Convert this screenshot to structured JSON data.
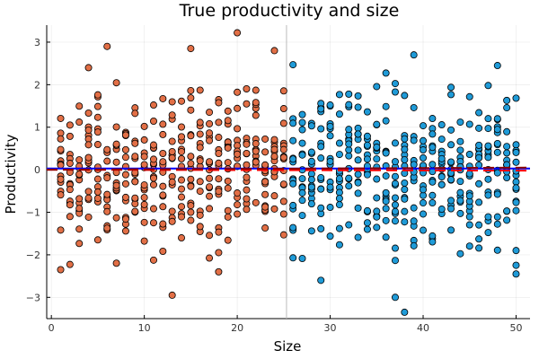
{
  "chart_data": {
    "type": "scatter",
    "title": "True productivity and size",
    "xlabel": "Size",
    "ylabel": "Productivity",
    "xlim": [
      -0.5,
      51.5
    ],
    "ylim": [
      -3.5,
      3.4
    ],
    "xticks": [
      0,
      10,
      20,
      30,
      40,
      50
    ],
    "yticks": [
      -3,
      -2,
      -1,
      0,
      1,
      2,
      3
    ],
    "grid": true,
    "legend": "none",
    "cutoff_x": 25.3,
    "points_per_size": 15,
    "reference_lines": [
      {
        "color": "#0000ff",
        "dash": "solid",
        "y": 0.03
      },
      {
        "color": "#ff0000",
        "dash": "dashed",
        "y_left": 0.0,
        "y_right": -0.02
      },
      {
        "color": "#8b0000",
        "dash": "dashed",
        "y_left": 0.0,
        "y_right": 0.05
      }
    ],
    "series": [
      {
        "color": "#e26f46",
        "x_range": [
          1,
          25
        ],
        "highlighted_points": [
          {
            "x": 6,
            "y": 2.9
          },
          {
            "x": 20,
            "y": 3.22
          },
          {
            "x": 13,
            "y": -2.95
          },
          {
            "x": 1,
            "y": -2.35
          },
          {
            "x": 18,
            "y": -2.4
          },
          {
            "x": 15,
            "y": 2.85
          },
          {
            "x": 24,
            "y": 2.8
          },
          {
            "x": 4,
            "y": 2.4
          }
        ]
      },
      {
        "color": "#1f9bd8",
        "x_range": [
          26,
          50
        ],
        "highlighted_points": [
          {
            "x": 39,
            "y": 2.7
          },
          {
            "x": 38,
            "y": -3.35
          },
          {
            "x": 37,
            "y": -3.0
          },
          {
            "x": 29,
            "y": -2.6
          },
          {
            "x": 50,
            "y": -2.45
          },
          {
            "x": 48,
            "y": 2.45
          },
          {
            "x": 26,
            "y": 2.47
          }
        ]
      }
    ]
  }
}
